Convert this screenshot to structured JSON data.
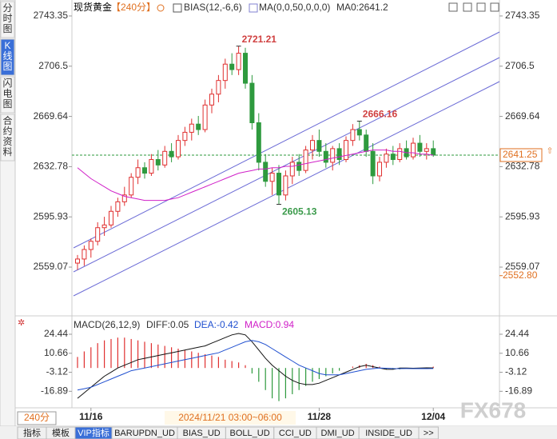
{
  "chart_data": {
    "type": "candlestick",
    "title": "现货黄金",
    "period": "【240分】",
    "indicators": [
      "BIAS(12,-6,6)",
      "MA(0,0,50,0,0,0)",
      "MA0:2641.2"
    ],
    "sidebar": [
      "分时图",
      "K线图",
      "闪电图",
      "合约资料"
    ],
    "categories": [
      null,
      null,
      "11/16",
      null,
      null,
      null,
      null,
      null,
      null,
      null,
      null,
      null,
      null,
      null,
      null,
      null,
      null,
      null,
      null,
      null,
      null,
      null,
      null,
      null,
      null,
      null,
      null,
      null,
      null,
      null,
      null,
      null,
      null,
      null,
      null,
      null,
      "11/28",
      null,
      null,
      null,
      null,
      null,
      null,
      null,
      null,
      null,
      null,
      null,
      null,
      null,
      null,
      null,
      null,
      "12/04"
    ],
    "ohlc": [
      [
        2562,
        2568,
        2557,
        2565
      ],
      [
        2565,
        2575,
        2560,
        2572
      ],
      [
        2572,
        2580,
        2566,
        2578
      ],
      [
        2578,
        2592,
        2575,
        2588
      ],
      [
        2588,
        2596,
        2582,
        2590
      ],
      [
        2590,
        2604,
        2588,
        2600
      ],
      [
        2600,
        2610,
        2596,
        2607
      ],
      [
        2607,
        2618,
        2604,
        2612
      ],
      [
        2612,
        2628,
        2610,
        2625
      ],
      [
        2625,
        2638,
        2620,
        2632
      ],
      [
        2632,
        2636,
        2624,
        2628
      ],
      [
        2628,
        2642,
        2626,
        2638
      ],
      [
        2638,
        2645,
        2630,
        2634
      ],
      [
        2634,
        2648,
        2632,
        2644
      ],
      [
        2644,
        2650,
        2636,
        2640
      ],
      [
        2640,
        2656,
        2638,
        2652
      ],
      [
        2652,
        2662,
        2648,
        2658
      ],
      [
        2658,
        2668,
        2652,
        2664
      ],
      [
        2664,
        2670,
        2656,
        2660
      ],
      [
        2660,
        2682,
        2658,
        2678
      ],
      [
        2678,
        2690,
        2672,
        2686
      ],
      [
        2686,
        2700,
        2680,
        2696
      ],
      [
        2696,
        2712,
        2690,
        2708
      ],
      [
        2708,
        2716,
        2700,
        2704
      ],
      [
        2704,
        2721.21,
        2700,
        2716
      ],
      [
        2716,
        2720,
        2690,
        2694
      ],
      [
        2694,
        2700,
        2660,
        2665
      ],
      [
        2665,
        2672,
        2630,
        2636
      ],
      [
        2636,
        2642,
        2618,
        2622
      ],
      [
        2622,
        2632,
        2612,
        2628
      ],
      [
        2628,
        2634,
        2605.13,
        2612
      ],
      [
        2612,
        2630,
        2608,
        2626
      ],
      [
        2626,
        2640,
        2620,
        2636
      ],
      [
        2636,
        2642,
        2626,
        2630
      ],
      [
        2630,
        2648,
        2628,
        2645
      ],
      [
        2645,
        2656,
        2638,
        2652
      ],
      [
        2652,
        2660,
        2640,
        2644
      ],
      [
        2644,
        2650,
        2632,
        2636
      ],
      [
        2636,
        2648,
        2630,
        2646
      ],
      [
        2646,
        2650,
        2634,
        2638
      ],
      [
        2638,
        2655,
        2636,
        2652
      ],
      [
        2652,
        2664,
        2648,
        2660
      ],
      [
        2660,
        2666.16,
        2652,
        2656
      ],
      [
        2656,
        2660,
        2640,
        2644
      ],
      [
        2644,
        2650,
        2620,
        2626
      ],
      [
        2626,
        2640,
        2622,
        2636
      ],
      [
        2636,
        2646,
        2632,
        2642
      ],
      [
        2642,
        2648,
        2634,
        2638
      ],
      [
        2638,
        2650,
        2636,
        2646
      ],
      [
        2646,
        2652,
        2638,
        2640
      ],
      [
        2640,
        2654,
        2638,
        2650
      ],
      [
        2650,
        2656,
        2640,
        2644
      ],
      [
        2644,
        2650,
        2638,
        2646
      ],
      [
        2646,
        2652,
        2640,
        2641.25
      ]
    ],
    "ma": [
      2632,
      2628,
      2624,
      2621,
      2618,
      2615,
      2613,
      2611,
      2610,
      2609,
      2608,
      2608,
      2608,
      2608,
      2609,
      2610,
      2612,
      2614,
      2616,
      2618,
      2620,
      2622,
      2624,
      2626,
      2628,
      2629,
      2630,
      2631,
      2631,
      2632,
      2632,
      2633,
      2633,
      2634,
      2635,
      2636,
      2637,
      2638,
      2639,
      2640,
      2641,
      2642,
      2643,
      2644,
      2645,
      2645,
      2645,
      2644,
      2644,
      2643,
      2643,
      2642,
      2642,
      2641.2
    ],
    "up_color": "#e03030",
    "down_color": "#2e9a3e",
    "ma_color": "#d020c8",
    "ylim": [
      2523.3,
      2749.2
    ],
    "yticks": [
      2559.07,
      2595.93,
      2632.78,
      2669.64,
      2706.5,
      2743.35
    ],
    "annotations": [
      2721.21,
      2605.13,
      2666.16
    ],
    "last_price": 2641.25,
    "cursor_price": {
      "value": 2552.8,
      "label": "2552.80"
    },
    "cursor_time": "2024/11/21 03:00~06:00",
    "period_label": "240分",
    "macd": {
      "title": "MACD(26,12,9)",
      "diff_label": "DIFF:0.05",
      "dea_label": "DEA:-0.42",
      "macd_label": "MACD:0.94",
      "ylim": [
        -28.87,
        34.87
      ],
      "yticks": [
        -16.89,
        -3.12,
        10.66,
        24.44
      ],
      "hist": [
        8,
        12,
        15,
        18,
        20,
        21,
        22,
        22,
        21,
        20,
        19,
        18,
        17,
        16,
        15,
        14,
        13,
        12,
        11,
        10,
        9,
        8,
        6,
        5,
        4,
        2,
        -4,
        -10,
        -16,
        -22,
        -24,
        -22,
        -19,
        -16,
        -13,
        -10,
        -8,
        -6,
        -4,
        -2,
        0,
        1,
        2,
        3,
        2,
        1,
        -1,
        -1,
        -1,
        -0.5,
        -0.5,
        -0.5,
        -0.4,
        0.94
      ],
      "diff": [
        -22,
        -18,
        -14,
        -10,
        -6,
        -3,
        0,
        2,
        4,
        6,
        7,
        8,
        9,
        10,
        11,
        12,
        13,
        14,
        15,
        16,
        18,
        20,
        22,
        24,
        25,
        24,
        19,
        13,
        7,
        2,
        -2,
        -6,
        -9,
        -11,
        -12,
        -12,
        -11,
        -9,
        -7,
        -5,
        -3,
        -1,
        1,
        2,
        1,
        0,
        -1,
        -1,
        0,
        0,
        -0.2,
        0,
        0.1,
        0.05
      ],
      "dea": [
        -16,
        -15,
        -14,
        -12,
        -10,
        -8,
        -6,
        -4,
        -2,
        -1,
        0,
        1,
        2,
        3,
        4,
        5,
        6,
        7,
        8,
        9,
        10,
        11,
        13,
        15,
        17,
        19,
        20,
        19,
        17,
        14,
        11,
        8,
        5,
        2,
        0,
        -2,
        -4,
        -5,
        -5,
        -5,
        -4,
        -3,
        -2,
        -1,
        -0.5,
        0,
        -0.2,
        -0.4,
        -0.5,
        -0.4,
        -0.5,
        -0.4,
        -0.45,
        -0.42
      ]
    },
    "tabs": [
      "指标",
      "模板",
      "VIP指标",
      "BARUPDN_UD",
      "BIAS_UD",
      "BOLL_UD",
      "CCI_UD",
      "DMI_UD",
      "INSIDE_UD",
      ">>"
    ],
    "watermark": "FX678"
  }
}
